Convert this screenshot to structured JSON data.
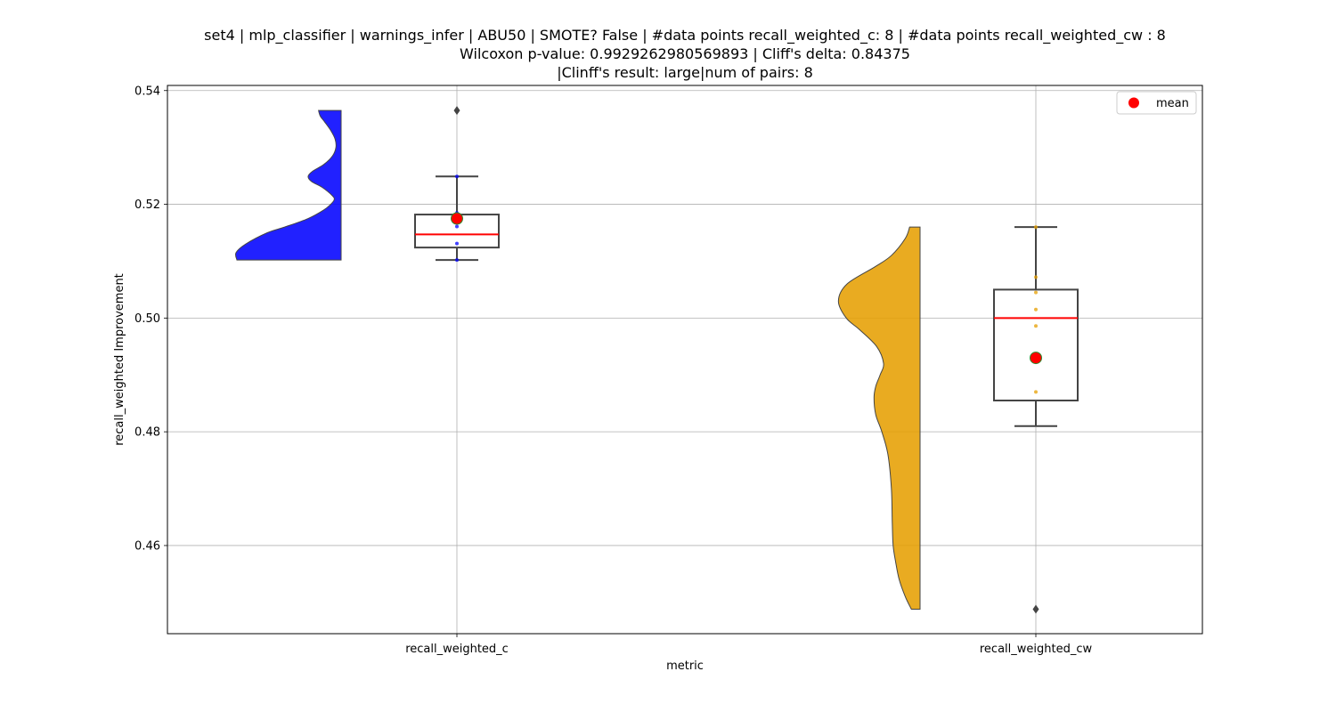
{
  "chart_data": {
    "type": "raincloud",
    "title_lines": [
      "set4 | mlp_classifier | warnings_infer | ABU50 | SMOTE? False | #data points recall_weighted_c: 8 | #data points recall_weighted_cw : 8",
      "Wilcoxon p-value: 0.9929262980569893 | Cliff's delta: 0.84375",
      "|Clinff's result: large|num of pairs: 8"
    ],
    "xlabel": "metric",
    "ylabel": "recall_weighted Improvement",
    "ylim": [
      0.4445,
      0.5409
    ],
    "yticks": [
      0.46,
      0.48,
      0.5,
      0.52,
      0.54
    ],
    "ytick_labels": [
      "0.46",
      "0.48",
      "0.50",
      "0.52",
      "0.54"
    ],
    "grid": true,
    "legend": {
      "placement": "top-right",
      "entries": [
        {
          "label": "mean",
          "color": "#ff0000"
        }
      ]
    },
    "categories": [
      "recall_weighted_c",
      "recall_weighted_cw"
    ],
    "series": [
      {
        "category": "recall_weighted_c",
        "color": "#0000ff",
        "points": [
          0.5102,
          0.5131,
          0.5161,
          0.5172,
          0.5182,
          0.5185,
          0.5249,
          0.5365
        ],
        "box": {
          "q1": 0.5124,
          "median": 0.5147,
          "q3": 0.5182,
          "whisker_low": 0.5102,
          "whisker_high": 0.5249,
          "fliers": [
            0.5365
          ]
        },
        "mean": 0.5175,
        "violin": {
          "y": [
            0.5102,
            0.5115,
            0.513,
            0.515,
            0.516,
            0.5175,
            0.519,
            0.52,
            0.5208,
            0.5215,
            0.523,
            0.524,
            0.5249,
            0.5258,
            0.527,
            0.5285,
            0.53,
            0.5315,
            0.533,
            0.5345,
            0.5355,
            0.5365
          ],
          "density": [
            1.2,
            1.21,
            1.1,
            0.85,
            0.65,
            0.38,
            0.2,
            0.12,
            0.08,
            0.1,
            0.22,
            0.34,
            0.38,
            0.33,
            0.2,
            0.1,
            0.06,
            0.07,
            0.12,
            0.19,
            0.24,
            0.26
          ]
        }
      },
      {
        "category": "recall_weighted_cw",
        "color": "#e69f00",
        "points": [
          0.4488,
          0.487,
          0.493,
          0.4986,
          0.5015,
          0.5045,
          0.5072,
          0.516
        ],
        "box": {
          "q1": 0.4855,
          "median": 0.5,
          "q3": 0.505,
          "whisker_low": 0.481,
          "whisker_high": 0.516,
          "fliers": [
            0.4488
          ]
        },
        "mean": 0.493,
        "violin": {
          "y": [
            0.4488,
            0.451,
            0.454,
            0.457,
            0.46,
            0.464,
            0.47,
            0.476,
            0.48,
            0.483,
            0.486,
            0.488,
            0.49,
            0.492,
            0.495,
            0.498,
            0.5,
            0.503,
            0.506,
            0.509,
            0.511,
            0.514,
            0.516
          ],
          "density": [
            0.1,
            0.17,
            0.24,
            0.28,
            0.31,
            0.32,
            0.33,
            0.37,
            0.44,
            0.51,
            0.53,
            0.51,
            0.46,
            0.42,
            0.5,
            0.7,
            0.85,
            0.94,
            0.84,
            0.52,
            0.33,
            0.17,
            0.12
          ]
        }
      }
    ]
  }
}
